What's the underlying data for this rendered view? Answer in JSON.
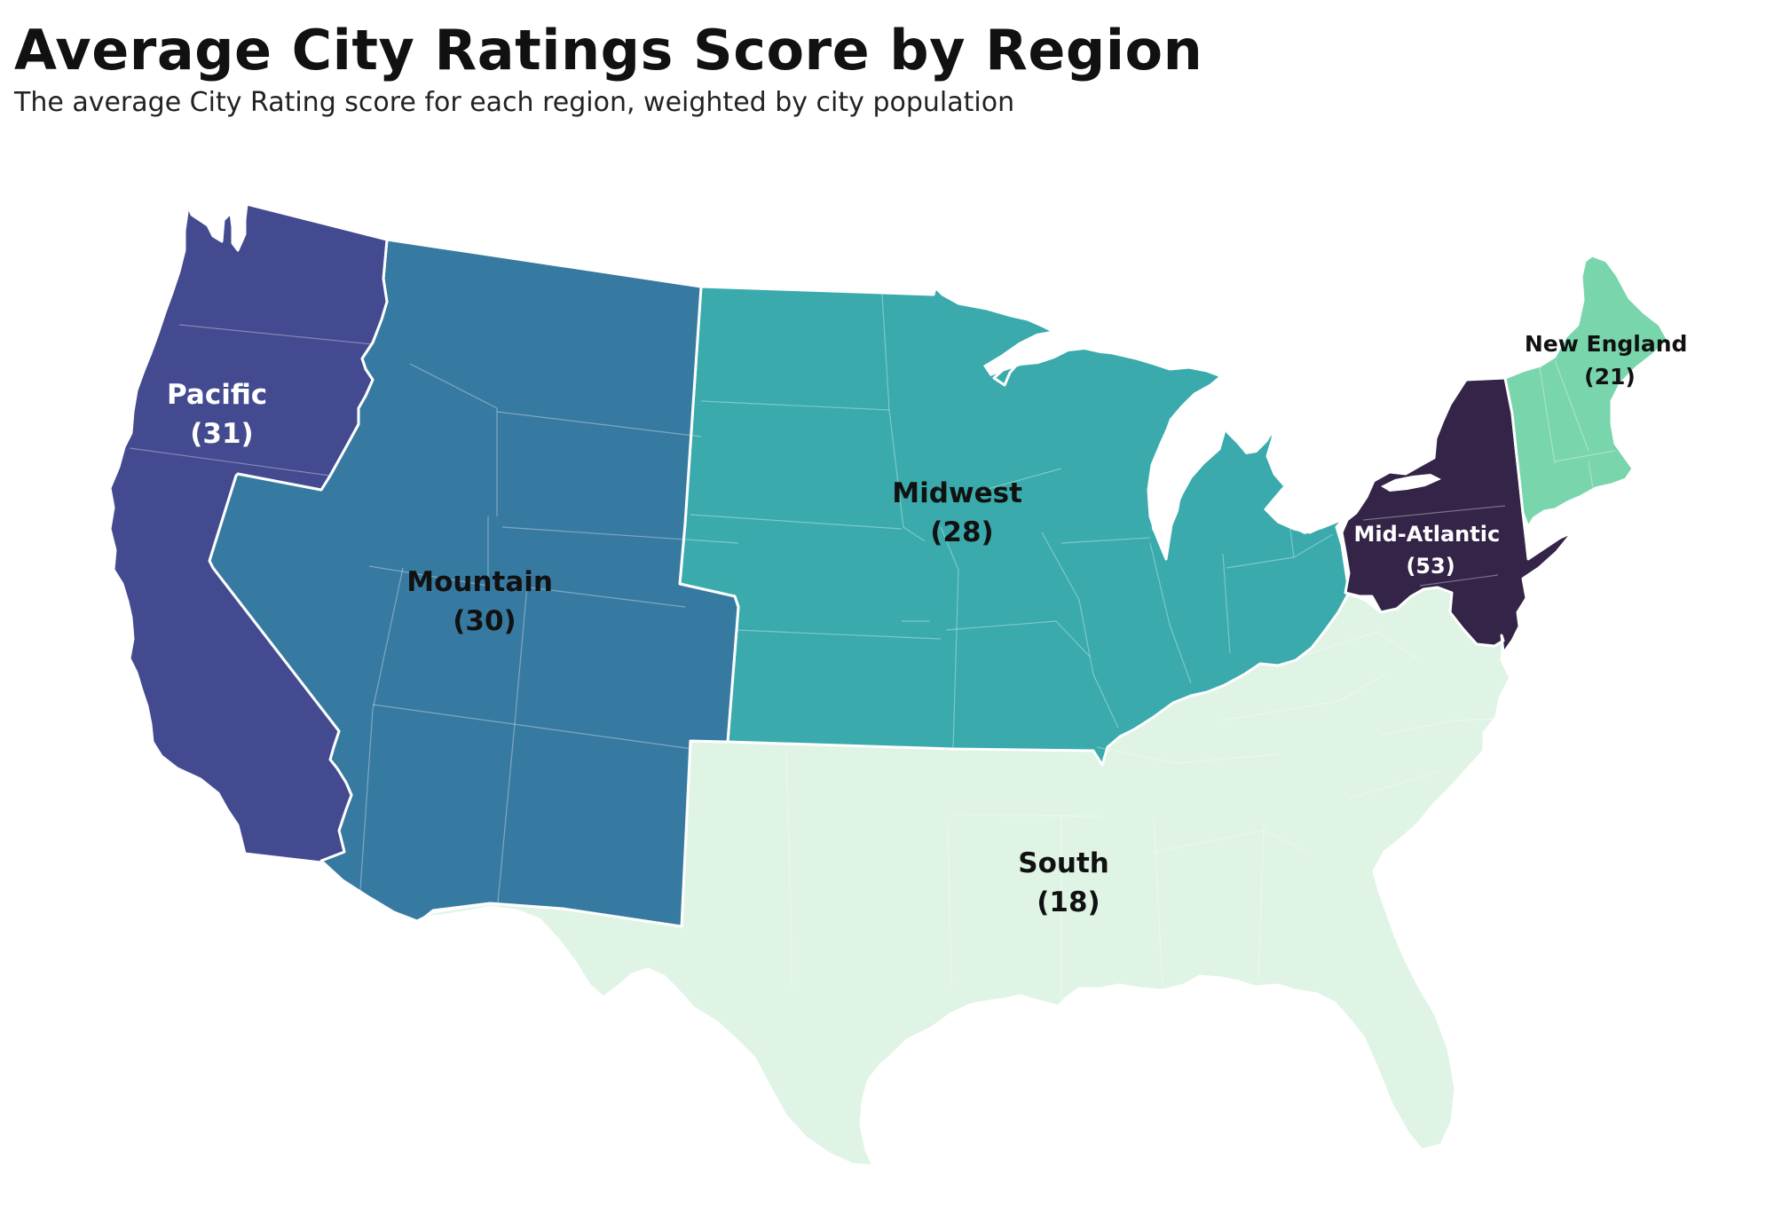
{
  "title": "Average City Ratings Score by Region",
  "subtitle": "The average City Rating score for each region,  weighted by city population",
  "regions": [
    {
      "id": "pacific",
      "name": "Pacific",
      "score": 31,
      "score_label": "(31)",
      "color": "#434a8f",
      "label_color": "#ffffff"
    },
    {
      "id": "mountain",
      "name": "Mountain",
      "score": 30,
      "score_label": "(30)",
      "color": "#377aa1",
      "label_color": "#111111"
    },
    {
      "id": "midwest",
      "name": "Midwest",
      "score": 28,
      "score_label": "(28)",
      "color": "#3aaaac",
      "label_color": "#111111"
    },
    {
      "id": "south",
      "name": "South",
      "score": 18,
      "score_label": "(18)",
      "color": "#dff4e5",
      "label_color": "#111111"
    },
    {
      "id": "mid_atlantic",
      "name": "Mid-Atlantic",
      "score": 53,
      "score_label": "(53)",
      "color": "#342447",
      "label_color": "#ffffff"
    },
    {
      "id": "new_england",
      "name": "New England",
      "score": 21,
      "score_label": "(21)",
      "color": "#79d5ab",
      "label_color": "#111111"
    }
  ]
}
